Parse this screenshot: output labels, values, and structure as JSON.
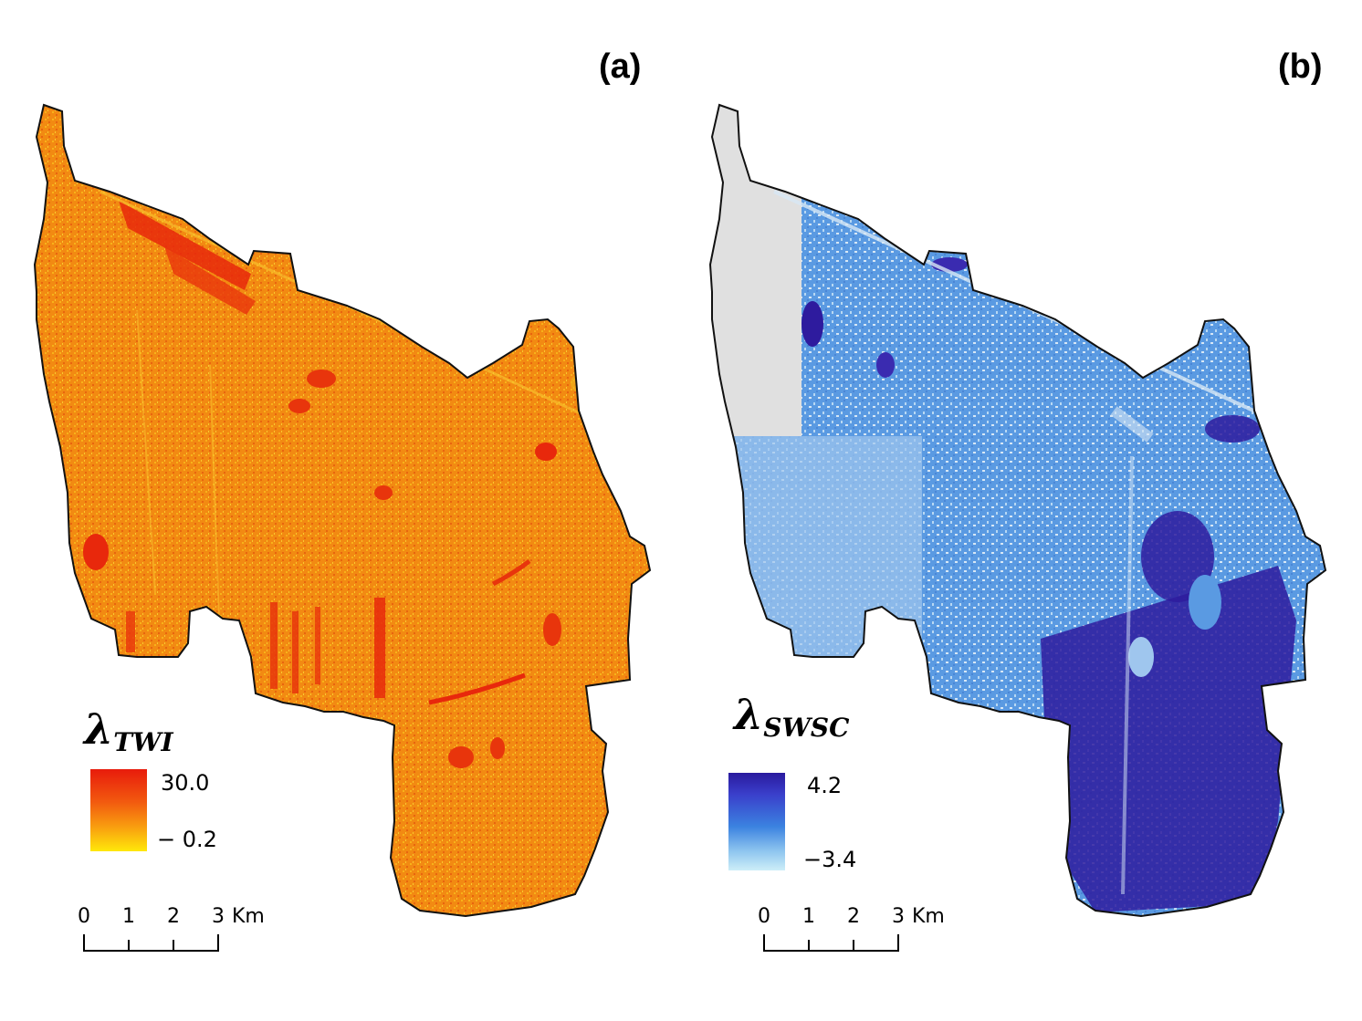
{
  "panels": [
    {
      "label": "(a)",
      "legend": {
        "symbol": "λ",
        "subscript": "TWI",
        "max_label": "30.0",
        "min_label": "− 0.2",
        "color_high": "#e81b0c",
        "color_low": "#ffe80a"
      },
      "base_color": "#f28a12",
      "scalebar": {
        "ticks": [
          "0",
          "1",
          "2",
          "3"
        ],
        "unit": "Km"
      }
    },
    {
      "label": "(b)",
      "legend": {
        "symbol": "λ",
        "subscript": "SWSC",
        "max_label": "4.2",
        "min_label": "−3.4",
        "color_high": "#2a1a9e",
        "color_low": "#cdeef8"
      },
      "base_color": "#5a9ae2",
      "nodata_color": "#e0e0e0",
      "scalebar": {
        "ticks": [
          "0",
          "1",
          "2",
          "3"
        ],
        "unit": "Km"
      }
    }
  ]
}
